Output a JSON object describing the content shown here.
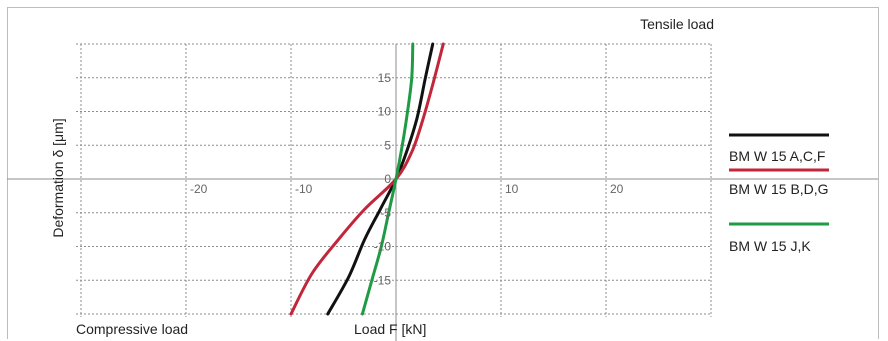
{
  "chart_data": {
    "type": "line",
    "title": "",
    "annotations": {
      "top_right": "Tensile load",
      "bottom_left": "Compressive load"
    },
    "xlabel": "Load F [kN]",
    "ylabel": "Deformation δ [μm]",
    "xlim": [
      -30,
      30
    ],
    "ylim": [
      -20,
      20
    ],
    "x_ticks": [
      -20,
      -10,
      10,
      20
    ],
    "y_ticks": [
      -15,
      -10,
      -5,
      0,
      5,
      10,
      15
    ],
    "grid": true,
    "legend_placement": "right",
    "series": [
      {
        "name": "BM W 15 A,C,F",
        "color": "#111111",
        "x": [
          -6.5,
          -4.5,
          -3.0,
          -1.5,
          0.0,
          1.0,
          2.0,
          2.8,
          3.5
        ],
        "y": [
          -20.0,
          -14.5,
          -9.0,
          -4.5,
          0.0,
          4.0,
          9.0,
          15.0,
          20.0
        ]
      },
      {
        "name": "BM W 15 B,D,G",
        "color": "#c2263a",
        "x": [
          -10.0,
          -8.0,
          -5.5,
          -3.0,
          0.0,
          1.5,
          2.5,
          3.5,
          4.5
        ],
        "y": [
          -20.0,
          -14.0,
          -9.0,
          -4.5,
          0.0,
          4.0,
          8.5,
          14.0,
          20.0
        ]
      },
      {
        "name": "BM W 15 J,K",
        "color": "#1f9a45",
        "x": [
          -3.2,
          -2.3,
          -1.4,
          -0.7,
          0.0,
          0.6,
          1.1,
          1.5,
          1.6
        ],
        "y": [
          -20.0,
          -15.0,
          -10.0,
          -5.0,
          0.0,
          5.0,
          10.0,
          15.0,
          20.0
        ]
      }
    ]
  }
}
